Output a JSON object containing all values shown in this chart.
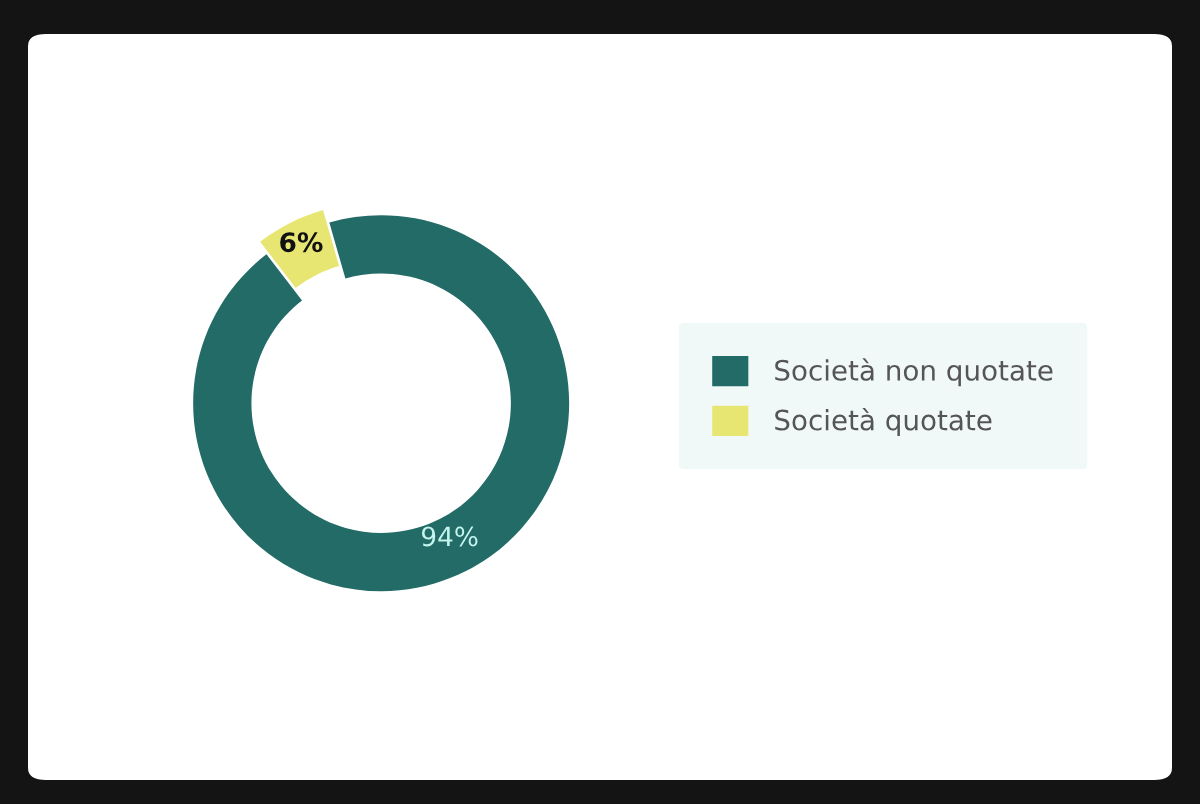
{
  "chart_data": {
    "type": "donut",
    "categories": [
      "Società non quotate",
      "Società quotate"
    ],
    "values": [
      94,
      6
    ],
    "colors": [
      "#236b67",
      "#e8e673"
    ],
    "value_labels": [
      "94%",
      "6%"
    ],
    "legend": "right"
  }
}
